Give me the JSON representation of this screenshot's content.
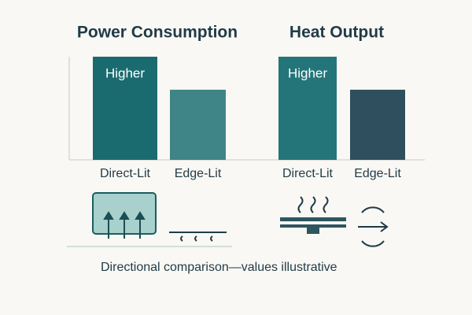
{
  "chart_data": [
    {
      "type": "bar",
      "title": "Power Consumption",
      "categories": [
        "Direct-Lit",
        "Edge-Lit"
      ],
      "values": [
        100,
        68
      ],
      "colors": [
        "#1a6b70",
        "#3f8588"
      ],
      "annotation": "Higher"
    },
    {
      "type": "bar",
      "title": "Heat Output",
      "categories": [
        "Direct-Lit",
        "Edge-Lit"
      ],
      "values": [
        100,
        68
      ],
      "colors": [
        "#24757a",
        "#2f4f5e"
      ],
      "annotation": "Higher"
    }
  ],
  "footnote": "Directional comparison—values illustrative"
}
